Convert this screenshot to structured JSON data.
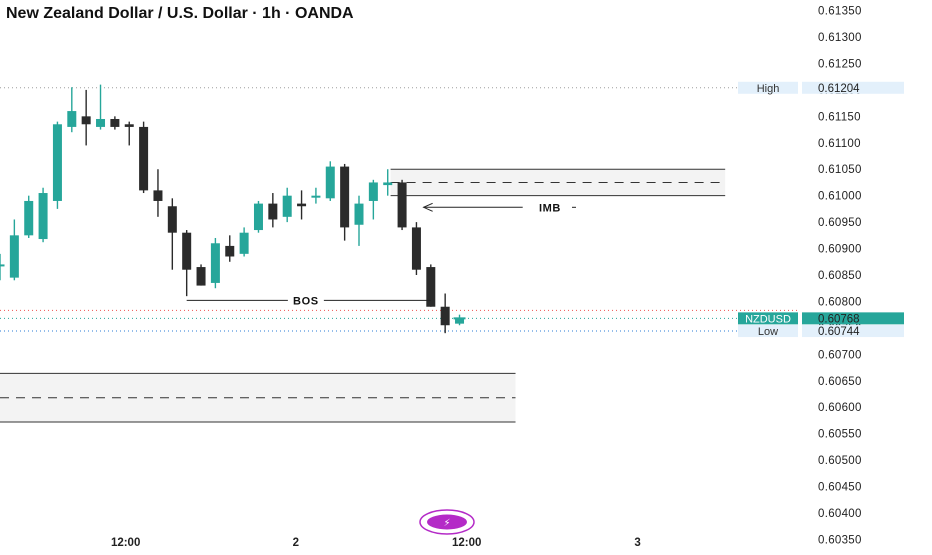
{
  "chart_data": {
    "type": "candlestick",
    "title": "New Zealand Dollar / U.S. Dollar · 1h · OANDA",
    "symbol": "NZDUSD",
    "y_range": [
      0.6033,
      0.6137
    ],
    "y_ticks": [
      "0.61350",
      "0.61300",
      "0.61250",
      "0.61200",
      "0.61150",
      "0.61100",
      "0.61050",
      "0.61000",
      "0.60950",
      "0.60900",
      "0.60850",
      "0.60800",
      "0.60750",
      "0.60700",
      "0.60650",
      "0.60600",
      "0.60550",
      "0.60500",
      "0.60450",
      "0.60400",
      "0.60350"
    ],
    "x_ticks": [
      {
        "label": "12:00",
        "index": 8.75
      },
      {
        "label": "2",
        "index": 20.6
      },
      {
        "label": "12:00",
        "index": 32.5
      },
      {
        "label": "3",
        "index": 44.4
      }
    ],
    "colors": {
      "up": "#26a69a",
      "down": "#2b2b2b",
      "zone_fill": "#f3f3f3",
      "zone_border": "#333333",
      "accent": "#26a69a",
      "high_line": "#9e9e9e",
      "low_line": "#2a7bd6",
      "price_line": "#26a69a",
      "red_line": "#ef5350",
      "tag_bg": "#e3f0fb",
      "logo": "#b42bc7"
    },
    "candles": [
      {
        "t": 0,
        "o": 0.6087,
        "h": 0.6089,
        "l": 0.6084,
        "c": 0.6087
      },
      {
        "t": 1,
        "o": 0.60845,
        "h": 0.60955,
        "l": 0.6084,
        "c": 0.60925
      },
      {
        "t": 2,
        "o": 0.60925,
        "h": 0.61,
        "l": 0.6092,
        "c": 0.6099
      },
      {
        "t": 3,
        "o": 0.60918,
        "h": 0.61015,
        "l": 0.60912,
        "c": 0.61005
      },
      {
        "t": 4,
        "o": 0.6099,
        "h": 0.6114,
        "l": 0.60975,
        "c": 0.61135
      },
      {
        "t": 5,
        "o": 0.6113,
        "h": 0.61205,
        "l": 0.6112,
        "c": 0.6116
      },
      {
        "t": 6,
        "o": 0.6115,
        "h": 0.612,
        "l": 0.61095,
        "c": 0.61135
      },
      {
        "t": 7,
        "o": 0.6113,
        "h": 0.6121,
        "l": 0.61125,
        "c": 0.61145
      },
      {
        "t": 8,
        "o": 0.61145,
        "h": 0.6115,
        "l": 0.61125,
        "c": 0.6113
      },
      {
        "t": 9,
        "o": 0.61135,
        "h": 0.6114,
        "l": 0.61095,
        "c": 0.6113
      },
      {
        "t": 10,
        "o": 0.6113,
        "h": 0.6114,
        "l": 0.61005,
        "c": 0.6101
      },
      {
        "t": 11,
        "o": 0.6101,
        "h": 0.6105,
        "l": 0.6096,
        "c": 0.6099
      },
      {
        "t": 12,
        "o": 0.6098,
        "h": 0.60995,
        "l": 0.6086,
        "c": 0.6093
      },
      {
        "t": 13,
        "o": 0.6093,
        "h": 0.60935,
        "l": 0.6081,
        "c": 0.6086
      },
      {
        "t": 14,
        "o": 0.60865,
        "h": 0.6087,
        "l": 0.6083,
        "c": 0.6083
      },
      {
        "t": 15,
        "o": 0.60835,
        "h": 0.6092,
        "l": 0.60825,
        "c": 0.6091
      },
      {
        "t": 16,
        "o": 0.60905,
        "h": 0.60925,
        "l": 0.60875,
        "c": 0.60885
      },
      {
        "t": 17,
        "o": 0.6089,
        "h": 0.6094,
        "l": 0.60885,
        "c": 0.6093
      },
      {
        "t": 18,
        "o": 0.60935,
        "h": 0.6099,
        "l": 0.6093,
        "c": 0.60985
      },
      {
        "t": 19,
        "o": 0.60985,
        "h": 0.61005,
        "l": 0.6094,
        "c": 0.60955
      },
      {
        "t": 20,
        "o": 0.6096,
        "h": 0.61015,
        "l": 0.6095,
        "c": 0.61
      },
      {
        "t": 21,
        "o": 0.60985,
        "h": 0.6101,
        "l": 0.60955,
        "c": 0.6098
      },
      {
        "t": 22,
        "o": 0.61,
        "h": 0.61015,
        "l": 0.60985,
        "c": 0.61
      },
      {
        "t": 23,
        "o": 0.60995,
        "h": 0.61065,
        "l": 0.6099,
        "c": 0.61055
      },
      {
        "t": 24,
        "o": 0.61055,
        "h": 0.6106,
        "l": 0.60915,
        "c": 0.6094
      },
      {
        "t": 25,
        "o": 0.60945,
        "h": 0.61,
        "l": 0.60905,
        "c": 0.60985
      },
      {
        "t": 26,
        "o": 0.6099,
        "h": 0.6103,
        "l": 0.60955,
        "c": 0.61025
      },
      {
        "t": 27,
        "o": 0.6102,
        "h": 0.6105,
        "l": 0.61,
        "c": 0.61025
      },
      {
        "t": 28,
        "o": 0.61025,
        "h": 0.6103,
        "l": 0.60935,
        "c": 0.6094
      },
      {
        "t": 29,
        "o": 0.6094,
        "h": 0.6095,
        "l": 0.6085,
        "c": 0.6086
      },
      {
        "t": 30,
        "o": 0.60865,
        "h": 0.6087,
        "l": 0.6079,
        "c": 0.6079
      },
      {
        "t": 31,
        "o": 0.6079,
        "h": 0.60815,
        "l": 0.6074,
        "c": 0.60755
      },
      {
        "t": 32,
        "o": 0.60758,
        "h": 0.60775,
        "l": 0.60755,
        "c": 0.60768
      }
    ],
    "zones": [
      {
        "name": "supply-zone",
        "from_index": 27.2,
        "to_index": 50.5,
        "top": 0.6105,
        "bottom": 0.61,
        "mid": 0.61025
      },
      {
        "name": "demand-zone",
        "from_index": -2,
        "to_index": 35.9,
        "top": 0.60664,
        "bottom": 0.60572,
        "mid": 0.60618
      }
    ],
    "annotations": [
      {
        "text": "IMB",
        "index": 38.3,
        "y": 0.60978
      },
      {
        "text": "BOS",
        "index": 21.3,
        "y": 0.60802
      }
    ],
    "bos_line": {
      "from_index": 13,
      "to_index": 30,
      "y": 0.60802
    },
    "imb_arrow": {
      "from_index": 36.4,
      "to_index": 29.5,
      "y": 0.60978
    },
    "levels": {
      "high": {
        "label": "High",
        "value": "0.61204",
        "y": 0.61204
      },
      "low": {
        "label": "Low",
        "value": "0.60744",
        "y": 0.60744
      },
      "last": {
        "label": "NZDUSD",
        "value": "0.60768",
        "y": 0.60768
      },
      "red": {
        "y": 0.60783
      }
    },
    "grid": false,
    "logo_glyph": "⚡"
  }
}
